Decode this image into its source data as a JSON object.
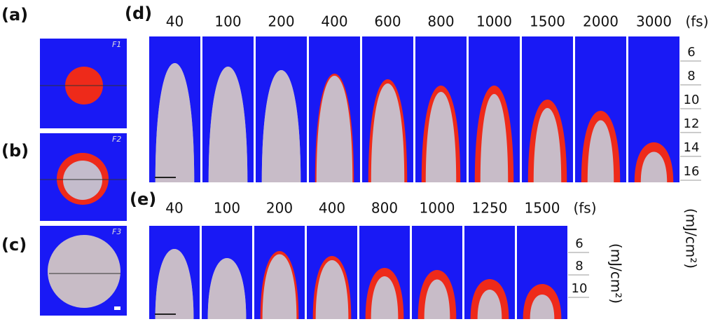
{
  "panels": {
    "a": {
      "label": "(a)",
      "tag": "F1"
    },
    "b": {
      "label": "(b)",
      "tag": "F2"
    },
    "c": {
      "label": "(c)",
      "tag": "F3"
    },
    "d": {
      "label": "(d)",
      "columns": [
        "40",
        "100",
        "200",
        "400",
        "600",
        "800",
        "1000",
        "1500",
        "2000",
        "3000"
      ],
      "column_unit": "(fs)",
      "ticks": [
        "6",
        "8",
        "10",
        "12",
        "14",
        "16"
      ],
      "tick_unit": "(mJ/cm²)"
    },
    "e": {
      "label": "(e)",
      "columns": [
        "40",
        "100",
        "200",
        "400",
        "800",
        "1000",
        "1250",
        "1500"
      ],
      "column_unit": "(fs)",
      "ticks": [
        "6",
        "8",
        "10"
      ],
      "tick_unit": "(mJ/cm²)"
    }
  }
}
